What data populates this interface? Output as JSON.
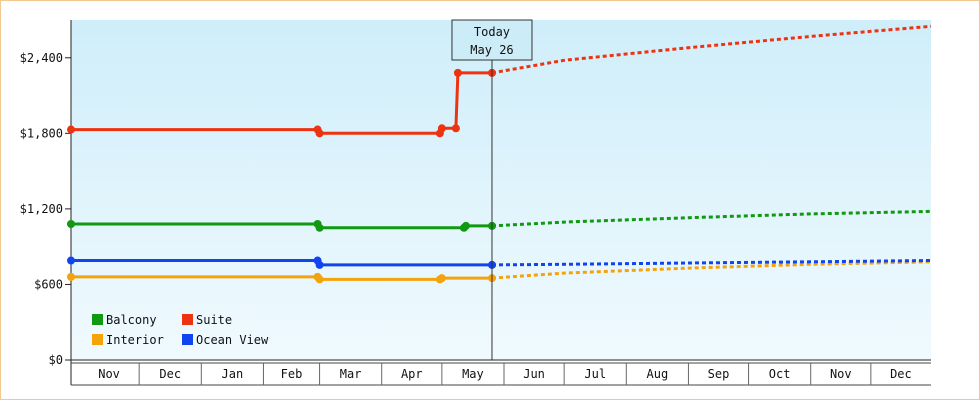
{
  "chart_data": {
    "type": "line",
    "title": "",
    "xlabel": "",
    "ylabel": "",
    "ylim": [
      0,
      2700
    ],
    "yticks": [
      "$0",
      "$600",
      "$1,200",
      "$1,800",
      "$2,400"
    ],
    "ytick_values": [
      0,
      600,
      1200,
      1800,
      2400
    ],
    "x_range": [
      "2025-10-28",
      "2026-12-31"
    ],
    "month_labels": [
      "Nov",
      "Dec",
      "Jan",
      "Feb",
      "Mar",
      "Apr",
      "May",
      "Jun",
      "Jul",
      "Aug",
      "Sep",
      "Oct",
      "Nov",
      "Dec"
    ],
    "month_starts": [
      "2025-11-01",
      "2025-12-01",
      "2026-01-01",
      "2026-02-01",
      "2026-03-01",
      "2026-04-01",
      "2026-05-01",
      "2026-06-01",
      "2026-07-01",
      "2026-08-01",
      "2026-09-01",
      "2026-10-01",
      "2026-11-01",
      "2026-12-01"
    ],
    "grid": false,
    "legend_position": "bottom-left",
    "today": {
      "line1": "Today",
      "line2": "May 26",
      "date": "2026-05-26"
    },
    "series": [
      {
        "name": "Balcony",
        "color": "#119911",
        "history": [
          [
            "2025-10-28",
            1080
          ],
          [
            "2026-02-28",
            1080
          ],
          [
            "2026-03-01",
            1050
          ],
          [
            "2026-05-12",
            1050
          ],
          [
            "2026-05-13",
            1065
          ],
          [
            "2026-05-26",
            1065
          ]
        ],
        "forecast": [
          [
            "2026-05-26",
            1065
          ],
          [
            "2026-07-01",
            1095
          ],
          [
            "2026-09-01",
            1130
          ],
          [
            "2026-11-01",
            1160
          ],
          [
            "2026-12-31",
            1180
          ]
        ]
      },
      {
        "name": "Suite",
        "color": "#ee3311",
        "history": [
          [
            "2025-10-28",
            1830
          ],
          [
            "2026-02-28",
            1830
          ],
          [
            "2026-03-01",
            1800
          ],
          [
            "2026-04-30",
            1800
          ],
          [
            "2026-05-01",
            1840
          ],
          [
            "2026-05-08",
            1840
          ],
          [
            "2026-05-09",
            2280
          ],
          [
            "2026-05-26",
            2280
          ]
        ],
        "forecast": [
          [
            "2026-05-26",
            2280
          ],
          [
            "2026-07-01",
            2380
          ],
          [
            "2026-09-01",
            2480
          ],
          [
            "2026-11-01",
            2570
          ],
          [
            "2026-12-31",
            2650
          ]
        ]
      },
      {
        "name": "Interior",
        "color": "#f5a30a",
        "history": [
          [
            "2025-10-28",
            660
          ],
          [
            "2026-02-28",
            660
          ],
          [
            "2026-03-01",
            640
          ],
          [
            "2026-04-30",
            640
          ],
          [
            "2026-05-01",
            650
          ],
          [
            "2026-05-26",
            650
          ]
        ],
        "forecast": [
          [
            "2026-05-26",
            650
          ],
          [
            "2026-07-01",
            690
          ],
          [
            "2026-09-01",
            730
          ],
          [
            "2026-11-01",
            760
          ],
          [
            "2026-12-31",
            780
          ]
        ]
      },
      {
        "name": "Ocean View",
        "color": "#1144ee",
        "history": [
          [
            "2025-10-28",
            790
          ],
          [
            "2026-02-28",
            790
          ],
          [
            "2026-03-01",
            755
          ],
          [
            "2026-05-26",
            755
          ]
        ],
        "forecast": [
          [
            "2026-05-26",
            755
          ],
          [
            "2026-07-01",
            760
          ],
          [
            "2026-09-01",
            770
          ],
          [
            "2026-11-01",
            780
          ],
          [
            "2026-12-31",
            790
          ]
        ]
      }
    ],
    "markers": [
      {
        "series": "Balcony",
        "dates": [
          "2025-10-28",
          "2026-02-28",
          "2026-03-01",
          "2026-05-12",
          "2026-05-13",
          "2026-05-26"
        ]
      },
      {
        "series": "Suite",
        "dates": [
          "2025-10-28",
          "2026-02-28",
          "2026-03-01",
          "2026-04-30",
          "2026-05-01",
          "2026-05-08",
          "2026-05-09",
          "2026-05-26"
        ]
      },
      {
        "series": "Interior",
        "dates": [
          "2025-10-28",
          "2026-02-28",
          "2026-03-01",
          "2026-04-30",
          "2026-05-01",
          "2026-05-26"
        ]
      },
      {
        "series": "Ocean View",
        "dates": [
          "2025-10-28",
          "2026-02-28",
          "2026-03-01",
          "2026-05-26"
        ]
      }
    ]
  }
}
